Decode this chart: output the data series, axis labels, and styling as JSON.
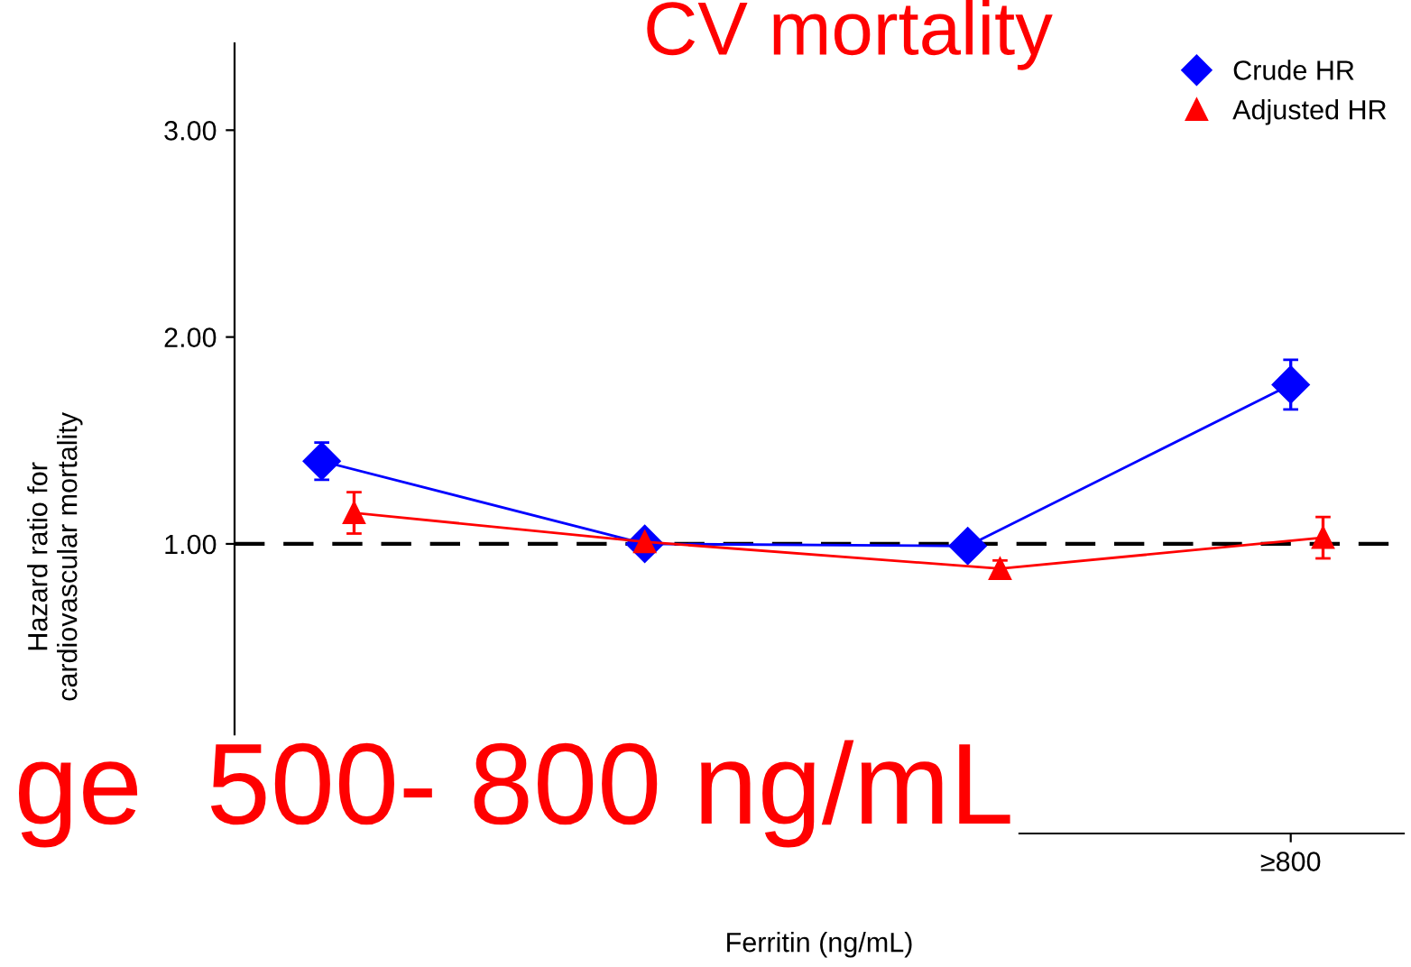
{
  "chart_data": {
    "type": "line",
    "title": "CV mortality",
    "xlabel": "Ferritin (ng/mL)",
    "ylabel": "Hazard ratio for\ncardiovascular mortality",
    "categories": [
      null,
      null,
      null,
      "≥800"
    ],
    "series": [
      {
        "name": "Crude HR",
        "color": "#0000ff",
        "marker": "diamond",
        "values": [
          1.4,
          1.0,
          0.99,
          1.77
        ],
        "errors": [
          0.09,
          0.03,
          0.05,
          0.12
        ]
      },
      {
        "name": "Adjusted HR",
        "color": "#ff0000",
        "marker": "triangle",
        "values": [
          1.15,
          1.01,
          0.88,
          1.03
        ],
        "errors": [
          0.1,
          0.04,
          0.04,
          0.1
        ]
      }
    ],
    "ylim": [
      -0.4,
      3.42
    ],
    "yticks": [
      {
        "value": 1,
        "label": "1.00"
      },
      {
        "value": 2,
        "label": "2.00"
      },
      {
        "value": 3,
        "label": "3.00"
      }
    ],
    "ref_lines": [
      {
        "axis": "y",
        "value": 1,
        "color": "#000000",
        "line_style": "dashed"
      }
    ],
    "annotations": [
      "ge  500- 800 ng/mL"
    ],
    "legend": "top right",
    "grid": false
  }
}
